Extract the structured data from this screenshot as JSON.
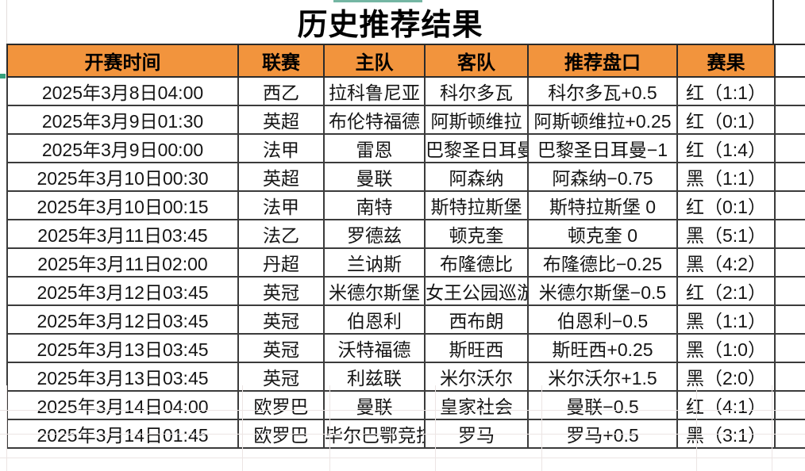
{
  "title": "历史推荐结果",
  "table": {
    "headers": [
      "开赛时间",
      "联赛",
      "主队",
      "客队",
      "推荐盘口",
      "赛果"
    ],
    "rows": [
      {
        "time": "2025年3月8日04:00",
        "league": "西乙",
        "home": "拉科鲁尼亚",
        "away": "科尔多瓦",
        "handicap": "科尔多瓦+0.5",
        "result": "红（1:1）",
        "result_color": "red"
      },
      {
        "time": "2025年3月9日01:30",
        "league": "英超",
        "home": "布伦特福德",
        "away": "阿斯顿维拉",
        "handicap": "阿斯顿维拉+0.25",
        "result": "红（0:1）",
        "result_color": "red"
      },
      {
        "time": "2025年3月9日00:00",
        "league": "法甲",
        "home": "雷恩",
        "away": "巴黎圣日耳曼",
        "handicap": "巴黎圣日耳曼−1",
        "result": "红（1:4）",
        "result_color": "red"
      },
      {
        "time": "2025年3月10日00:30",
        "league": "英超",
        "home": "曼联",
        "away": "阿森纳",
        "handicap": "阿森纳−0.75",
        "result": "黑（1:1）",
        "result_color": "black"
      },
      {
        "time": "2025年3月10日00:15",
        "league": "法甲",
        "home": "南特",
        "away": "斯特拉斯堡",
        "handicap": "斯特拉斯堡 0",
        "result": "红（0:1）",
        "result_color": "red"
      },
      {
        "time": "2025年3月11日03:45",
        "league": "法乙",
        "home": "罗德兹",
        "away": "顿克奎",
        "handicap": "顿克奎 0",
        "result": "黑（5:1）",
        "result_color": "black"
      },
      {
        "time": "2025年3月11日02:00",
        "league": "丹超",
        "home": "兰讷斯",
        "away": "布隆德比",
        "handicap": "布隆德比−0.25",
        "result": "黑（4:2）",
        "result_color": "black"
      },
      {
        "time": "2025年3月12日03:45",
        "league": "英冠",
        "home": "米德尔斯堡",
        "away": "女王公园巡游者",
        "handicap": "米德尔斯堡−0.5",
        "result": "红（2:1）",
        "result_color": "red"
      },
      {
        "time": "2025年3月12日03:45",
        "league": "英冠",
        "home": "伯恩利",
        "away": "西布朗",
        "handicap": "伯恩利−0.5",
        "result": "黑（1:1）",
        "result_color": "black"
      },
      {
        "time": "2025年3月13日03:45",
        "league": "英冠",
        "home": "沃特福德",
        "away": "斯旺西",
        "handicap": "斯旺西+0.25",
        "result": "黑（1:0）",
        "result_color": "black"
      },
      {
        "time": "2025年3月13日03:45",
        "league": "英冠",
        "home": "利兹联",
        "away": "米尔沃尔",
        "handicap": "米尔沃尔+1.5",
        "result": "黑（2:0）",
        "result_color": "black"
      },
      {
        "time": "2025年3月14日04:00",
        "league": "欧罗巴",
        "home": "曼联",
        "away": "皇家社会",
        "handicap": "曼联−0.5",
        "result": "红（4:1）",
        "result_color": "red"
      },
      {
        "time": "2025年3月14日01:45",
        "league": "欧罗巴",
        "home": "毕尔巴鄂竞技",
        "away": "罗马",
        "handicap": "罗马+0.5",
        "result": "黑（3:1）",
        "result_color": "black"
      }
    ]
  },
  "colors": {
    "header_bg": "#F2943D",
    "result_red": "#BE2D25",
    "result_black": "#1A1A1A",
    "accent_teal": "#74B6A3",
    "accent_green": "#35A07C"
  }
}
